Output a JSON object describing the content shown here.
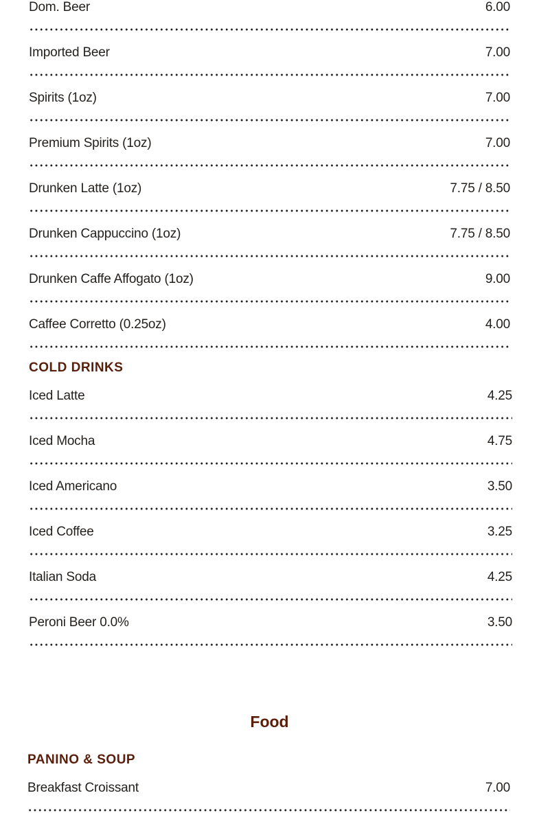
{
  "alcohol_items": [
    {
      "name": "Dom. Beer",
      "price": "6.00"
    },
    {
      "name": "Imported Beer",
      "price": "7.00"
    },
    {
      "name": "Spirits (1oz)",
      "price": "7.00"
    },
    {
      "name": "Premium Spirits (1oz)",
      "price": "7.00"
    },
    {
      "name": "Drunken Latte (1oz)",
      "price": "7.75 / 8.50"
    },
    {
      "name": "Drunken Cappuccino (1oz)",
      "price": "7.75 / 8.50"
    },
    {
      "name": "Drunken Caffe Affogato (1oz)",
      "price": "9.00"
    },
    {
      "name": "Caffee Corretto (0.25oz)",
      "price": "4.00"
    }
  ],
  "cold_drinks": {
    "heading": "COLD DRINKS",
    "items": [
      {
        "name": "Iced Latte",
        "price": "4.25"
      },
      {
        "name": "Iced Mocha",
        "price": "4.75"
      },
      {
        "name": "Iced Americano",
        "price": "3.50"
      },
      {
        "name": "Iced Coffee",
        "price": "3.25"
      },
      {
        "name": "Italian Soda",
        "price": "4.25"
      },
      {
        "name": "Peroni Beer 0.0%",
        "price": "3.50"
      }
    ]
  },
  "food": {
    "title": "Food",
    "panino_soup": {
      "heading": "PANINO & SOUP",
      "items": [
        {
          "name": "Breakfast Croissant",
          "price": "7.00"
        }
      ]
    }
  },
  "colors": {
    "heading": "#5a1e0a",
    "text": "#231f1c"
  }
}
